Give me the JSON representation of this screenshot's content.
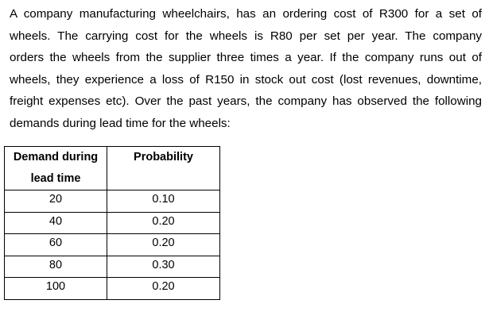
{
  "problem": {
    "lines": [
      "A company manufacturing wheelchairs, has an ordering cost of R300 for a set of",
      "wheels. The carrying cost for the wheels is R80 per set per year. The company",
      "orders the wheels from the supplier three times a year. If the company runs out of",
      "wheels, they experience a loss of R150 in stock out cost (lost revenues, downtime,",
      "freight expenses etc). Over the past years, the company has observed the following",
      "demands during lead time for the wheels:"
    ]
  },
  "table": {
    "headers": [
      "Demand during lead time",
      "Probability"
    ],
    "header_lines": {
      "col1_line1": "Demand during",
      "col1_line2": "lead time",
      "col2": "Probability"
    },
    "rows": [
      {
        "demand": "20",
        "probability": "0.10"
      },
      {
        "demand": "40",
        "probability": "0.20"
      },
      {
        "demand": "60",
        "probability": "0.20"
      },
      {
        "demand": "80",
        "probability": "0.30"
      },
      {
        "demand": "100",
        "probability": "0.20"
      }
    ]
  }
}
